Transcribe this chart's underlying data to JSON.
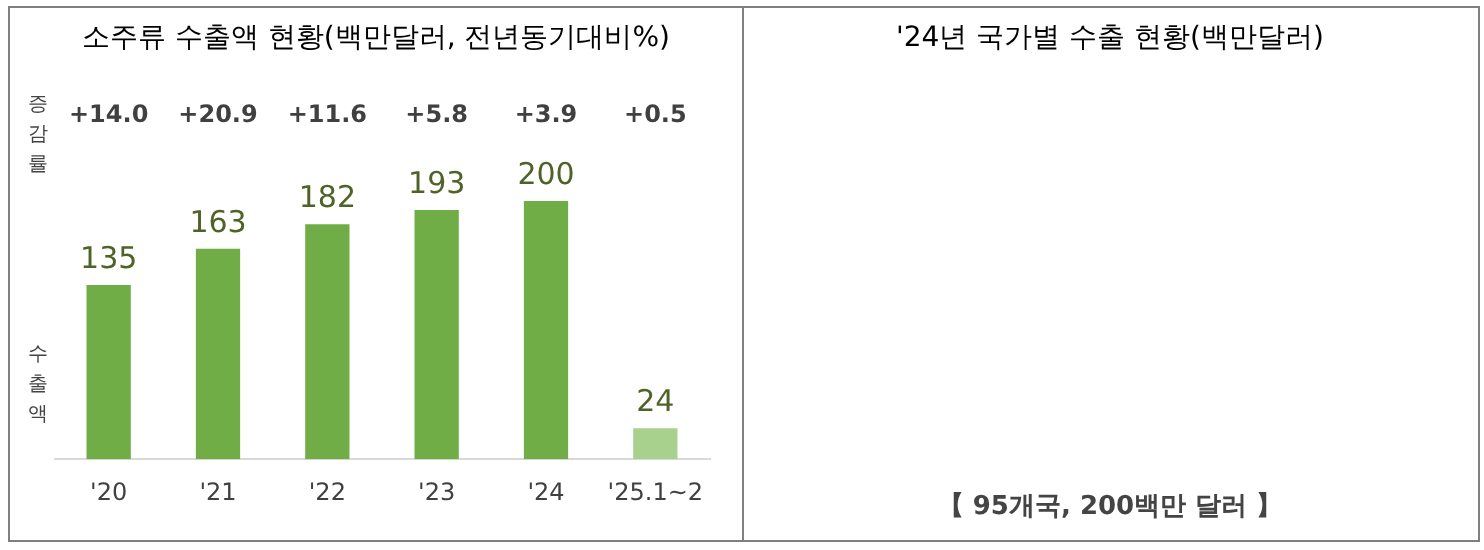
{
  "chart_data": [
    {
      "type": "bar",
      "title": "소주류 수출액 현황(백만달러, 전년동기대비%)",
      "categories": [
        "'20",
        "'21",
        "'22",
        "'23",
        "'24",
        "'25.1~2"
      ],
      "values": [
        135,
        163,
        182,
        193,
        200,
        24
      ],
      "colors": [
        "#70ad47",
        "#70ad47",
        "#70ad47",
        "#70ad47",
        "#70ad47",
        "#a9d18e"
      ],
      "data_labels": true,
      "annotations": [
        "+14.0",
        "+20.9",
        "+11.6",
        "+5.8",
        "+3.9",
        "+0.5",
        "증감률",
        "수출액"
      ],
      "tick_labels": "x",
      "grid": false,
      "legend": false
    },
    {
      "type": "other",
      "title": "'24년 국가별 수출 현황(백만달러)",
      "annotations": [
        "【 95개국, 200백만 달러 】"
      ]
    }
  ]
}
